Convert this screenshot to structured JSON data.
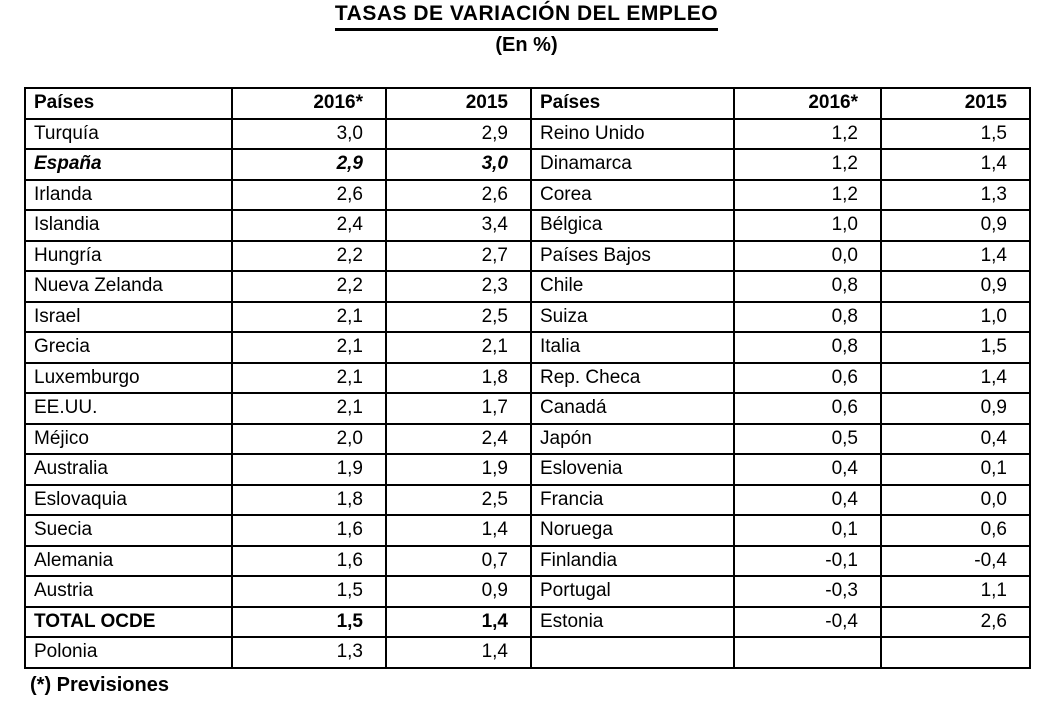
{
  "title": "TASAS DE VARIACIÓN DEL EMPLEO",
  "subtitle": "(En %)",
  "footnote": "(*) Previsiones",
  "table": {
    "headers": [
      "Países",
      "2016*",
      "2015",
      "Países",
      "2016*",
      "2015"
    ],
    "rows": [
      {
        "left": {
          "country": "Turquía",
          "y2016": "3,0",
          "y2015": "2,9",
          "style": "normal"
        },
        "right": {
          "country": "Reino Unido",
          "y2016": "1,2",
          "y2015": "1,5",
          "style": "normal"
        }
      },
      {
        "left": {
          "country": "España",
          "y2016": "2,9",
          "y2015": "3,0",
          "style": "bold-italic"
        },
        "right": {
          "country": "Dinamarca",
          "y2016": "1,2",
          "y2015": "1,4",
          "style": "normal"
        }
      },
      {
        "left": {
          "country": "Irlanda",
          "y2016": "2,6",
          "y2015": "2,6",
          "style": "normal"
        },
        "right": {
          "country": "Corea",
          "y2016": "1,2",
          "y2015": "1,3",
          "style": "normal"
        }
      },
      {
        "left": {
          "country": "Islandia",
          "y2016": "2,4",
          "y2015": "3,4",
          "style": "normal"
        },
        "right": {
          "country": "Bélgica",
          "y2016": "1,0",
          "y2015": "0,9",
          "style": "normal"
        }
      },
      {
        "left": {
          "country": "Hungría",
          "y2016": "2,2",
          "y2015": "2,7",
          "style": "normal"
        },
        "right": {
          "country": "Países Bajos",
          "y2016": "0,0",
          "y2015": "1,4",
          "style": "normal"
        }
      },
      {
        "left": {
          "country": "Nueva Zelanda",
          "y2016": "2,2",
          "y2015": "2,3",
          "style": "normal"
        },
        "right": {
          "country": "Chile",
          "y2016": "0,8",
          "y2015": "0,9",
          "style": "normal"
        }
      },
      {
        "left": {
          "country": "Israel",
          "y2016": "2,1",
          "y2015": "2,5",
          "style": "normal"
        },
        "right": {
          "country": "Suiza",
          "y2016": "0,8",
          "y2015": "1,0",
          "style": "normal"
        }
      },
      {
        "left": {
          "country": "Grecia",
          "y2016": "2,1",
          "y2015": "2,1",
          "style": "normal"
        },
        "right": {
          "country": "Italia",
          "y2016": "0,8",
          "y2015": "1,5",
          "style": "normal"
        }
      },
      {
        "left": {
          "country": "Luxemburgo",
          "y2016": "2,1",
          "y2015": "1,8",
          "style": "normal"
        },
        "right": {
          "country": "Rep. Checa",
          "y2016": "0,6",
          "y2015": "1,4",
          "style": "normal"
        }
      },
      {
        "left": {
          "country": "EE.UU.",
          "y2016": "2,1",
          "y2015": "1,7",
          "style": "normal"
        },
        "right": {
          "country": "Canadá",
          "y2016": "0,6",
          "y2015": "0,9",
          "style": "normal"
        }
      },
      {
        "left": {
          "country": "Méjico",
          "y2016": "2,0",
          "y2015": "2,4",
          "style": "normal"
        },
        "right": {
          "country": "Japón",
          "y2016": "0,5",
          "y2015": "0,4",
          "style": "normal"
        }
      },
      {
        "left": {
          "country": "Australia",
          "y2016": "1,9",
          "y2015": "1,9",
          "style": "normal"
        },
        "right": {
          "country": "Eslovenia",
          "y2016": "0,4",
          "y2015": "0,1",
          "style": "normal"
        }
      },
      {
        "left": {
          "country": "Eslovaquia",
          "y2016": "1,8",
          "y2015": "2,5",
          "style": "normal"
        },
        "right": {
          "country": "Francia",
          "y2016": "0,4",
          "y2015": "0,0",
          "style": "normal"
        }
      },
      {
        "left": {
          "country": "Suecia",
          "y2016": "1,6",
          "y2015": "1,4",
          "style": "normal"
        },
        "right": {
          "country": "Noruega",
          "y2016": "0,1",
          "y2015": "0,6",
          "style": "normal"
        }
      },
      {
        "left": {
          "country": "Alemania",
          "y2016": "1,6",
          "y2015": "0,7",
          "style": "normal"
        },
        "right": {
          "country": "Finlandia",
          "y2016": "-0,1",
          "y2015": "-0,4",
          "style": "normal"
        }
      },
      {
        "left": {
          "country": "Austria",
          "y2016": "1,5",
          "y2015": "0,9",
          "style": "normal"
        },
        "right": {
          "country": "Portugal",
          "y2016": "-0,3",
          "y2015": "1,1",
          "style": "normal"
        }
      },
      {
        "left": {
          "country": "TOTAL OCDE",
          "y2016": "1,5",
          "y2015": "1,4",
          "style": "bold"
        },
        "right": {
          "country": "Estonia",
          "y2016": "-0,4",
          "y2015": "2,6",
          "style": "normal"
        }
      },
      {
        "left": {
          "country": "Polonia",
          "y2016": "1,3",
          "y2015": "1,4",
          "style": "normal"
        },
        "right": {
          "country": "",
          "y2016": "",
          "y2015": "",
          "style": "normal"
        }
      }
    ]
  }
}
